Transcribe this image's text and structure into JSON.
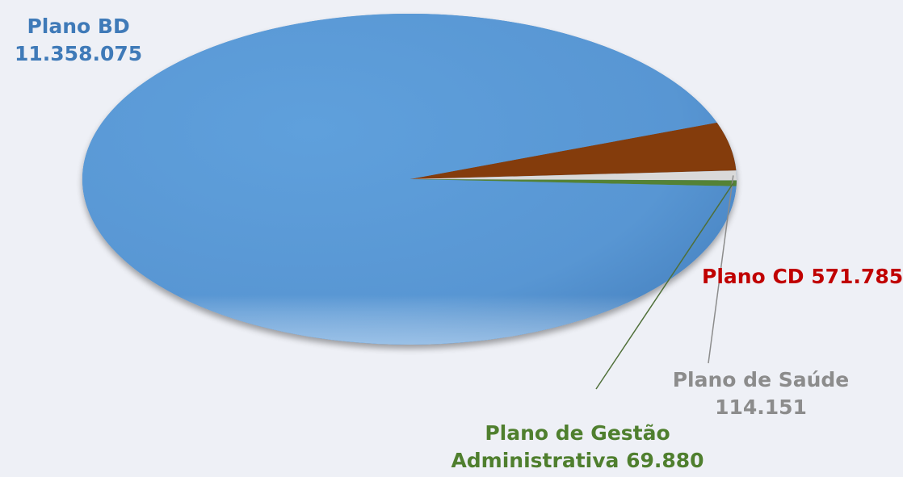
{
  "chart_data": {
    "type": "pie",
    "slices": [
      {
        "label": "Plano BD",
        "value": 11358075,
        "value_text": "11.358.075",
        "color": "#5b9bd5",
        "label_color": "#3f7ab8"
      },
      {
        "label": "Plano CD",
        "value": 571785,
        "value_text": "571.785",
        "color": "#843c0c",
        "label_color": "#c00000"
      },
      {
        "label": "Plano de Saúde",
        "value": 114151,
        "value_text": "114.151",
        "color": "#d9d9d9",
        "label_color": "#8c8c8c"
      },
      {
        "label": "Plano de Gestão Administrativa",
        "value": 69880,
        "value_text": "69.880",
        "color": "#548235",
        "label_color": "#4f7f2e"
      }
    ],
    "label_lines": {
      "bd": [
        "Plano BD",
        "11.358.075"
      ],
      "cd": [
        "Plano CD 571.785"
      ],
      "saude": [
        "Plano de Saúde",
        "114.151"
      ],
      "pga": [
        "Plano de Gestão",
        "Administrativa 69.880"
      ]
    },
    "legend": "none",
    "style": "3d-tilted"
  }
}
